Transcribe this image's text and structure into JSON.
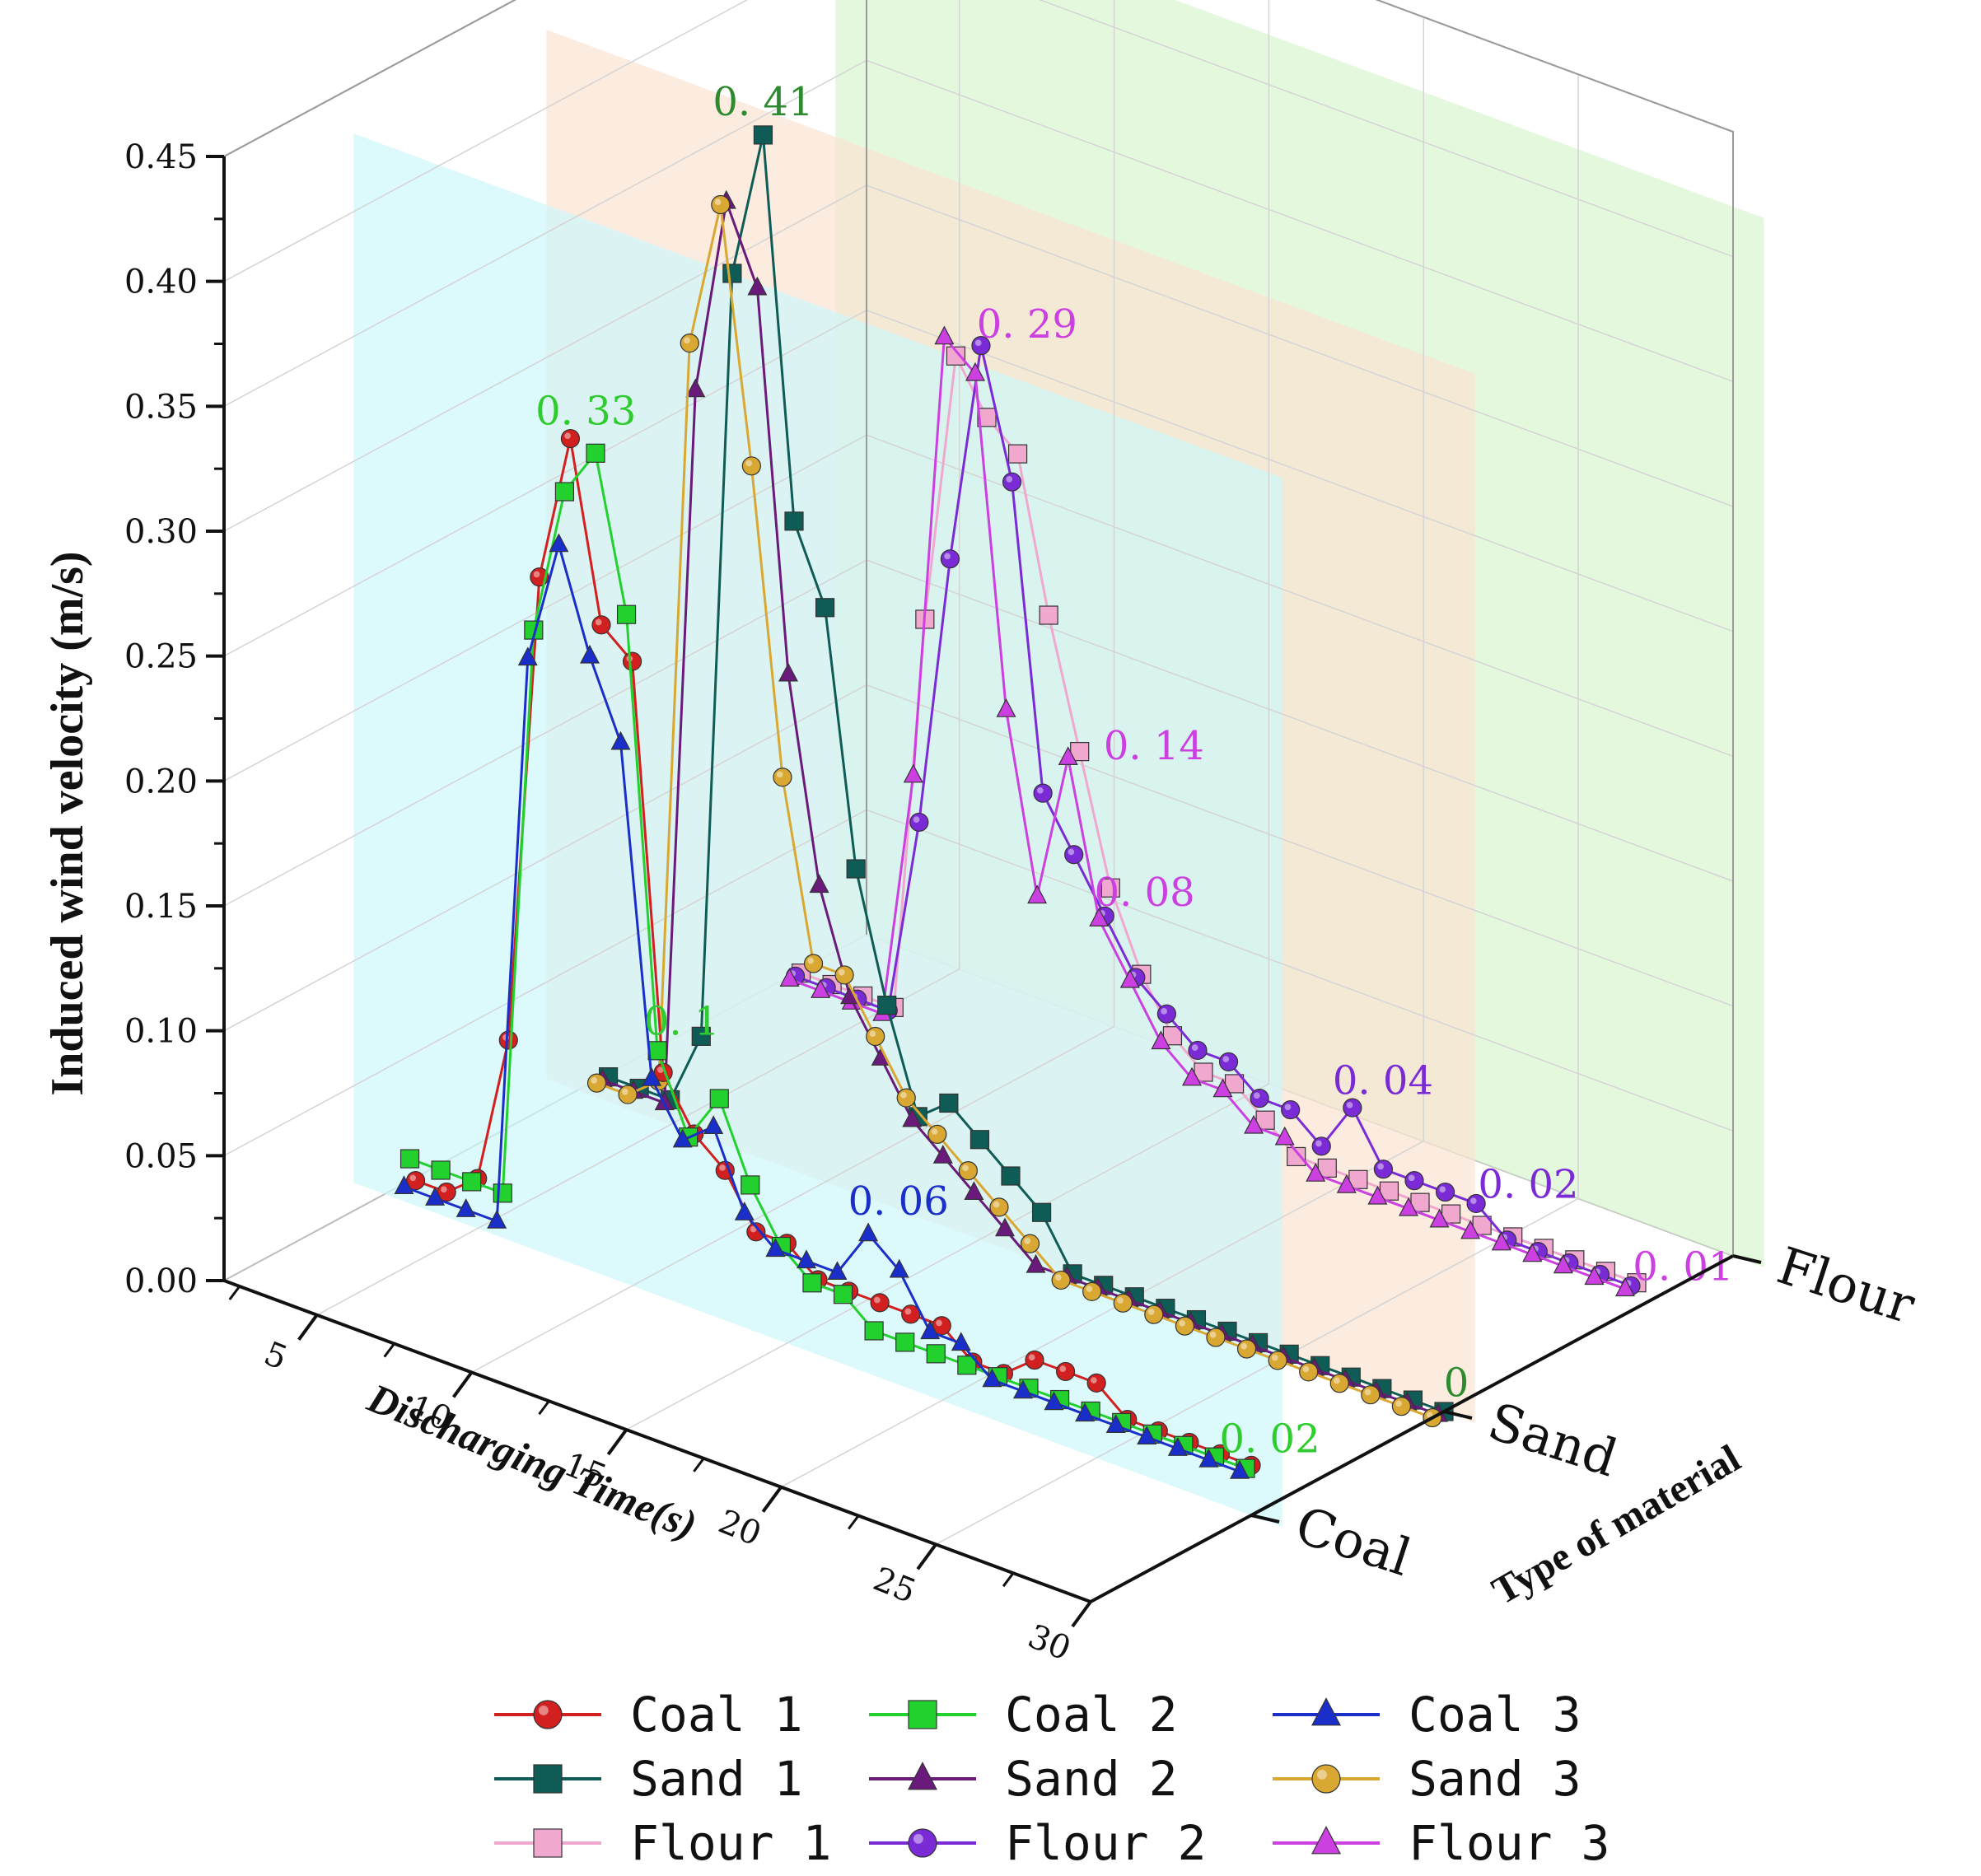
{
  "chart_data": {
    "type": "line",
    "projection": "3d",
    "ylabel": "Induced wind velocity (m/s)",
    "xlabel": "Discharging Time(s)",
    "zlabel": "Type of material",
    "ylim": [
      0,
      0.45
    ],
    "xlim": [
      2,
      30
    ],
    "y_ticks": [
      "0.00",
      "0.05",
      "0.10",
      "0.15",
      "0.20",
      "0.25",
      "0.30",
      "0.35",
      "0.40",
      "0.45"
    ],
    "x_ticks": [
      "5",
      "10",
      "15",
      "20",
      "25",
      "30"
    ],
    "categories": [
      "Coal",
      "Sand",
      "Flour"
    ],
    "colors": {
      "coal_plane": "#cdf6f9",
      "sand_plane": "#fbe3d2",
      "flour_plane": "#d8f5cf"
    },
    "series": [
      {
        "name": "Coal 1",
        "category": "Coal",
        "offset": 0,
        "color": "#d21f1f",
        "marker": "circle",
        "x": [
          3,
          4,
          5,
          6,
          7,
          8,
          9,
          10,
          11,
          12,
          13,
          14,
          15,
          16,
          17,
          18,
          19,
          20,
          21,
          22,
          23,
          24,
          25,
          26,
          27,
          28,
          29,
          30
        ],
        "values": [
          0.01,
          0.01,
          0.02,
          0.08,
          0.27,
          0.33,
          0.26,
          0.25,
          0.09,
          0.07,
          0.06,
          0.04,
          0.04,
          0.03,
          0.03,
          0.03,
          0.03,
          0.03,
          0.02,
          0.02,
          0.03,
          0.03,
          0.03,
          0.02,
          0.02,
          0.02,
          0.02,
          0.02
        ]
      },
      {
        "name": "Coal 2",
        "category": "Coal",
        "offset": 0.1,
        "color": "#22d12e",
        "marker": "square",
        "x": [
          3,
          4,
          5,
          6,
          7,
          8,
          9,
          10,
          11,
          12,
          13,
          14,
          15,
          16,
          17,
          18,
          19,
          20,
          21,
          22,
          23,
          24,
          25,
          26,
          27,
          28,
          29,
          30
        ],
        "values": [
          0.02,
          0.02,
          0.02,
          0.02,
          0.25,
          0.31,
          0.33,
          0.27,
          0.1,
          0.07,
          0.09,
          0.06,
          0.04,
          0.03,
          0.03,
          0.02,
          0.02,
          0.02,
          0.02,
          0.02,
          0.02,
          0.02,
          0.02,
          0.02,
          0.02,
          0.02,
          0.02,
          0.02
        ]
      },
      {
        "name": "Coal 3",
        "category": "Coal",
        "offset": 0.2,
        "color": "#1a2fc9",
        "marker": "triangle",
        "x": [
          3,
          4,
          5,
          6,
          7,
          8,
          9,
          10,
          11,
          12,
          13,
          14,
          15,
          16,
          17,
          18,
          19,
          20,
          21,
          22,
          23,
          24,
          25,
          26,
          27,
          28,
          29,
          30
        ],
        "values": [
          0.01,
          0.01,
          0.01,
          0.01,
          0.24,
          0.29,
          0.25,
          0.22,
          0.09,
          0.07,
          0.08,
          0.05,
          0.04,
          0.04,
          0.04,
          0.06,
          0.05,
          0.03,
          0.03,
          0.02,
          0.02,
          0.02,
          0.02,
          0.02,
          0.02,
          0.02,
          0.02,
          0.02
        ]
      },
      {
        "name": "Sand 1",
        "category": "Sand",
        "offset": 0,
        "color": "#0e5c55",
        "marker": "square",
        "x": [
          3,
          4,
          5,
          6,
          7,
          8,
          9,
          10,
          11,
          12,
          13,
          14,
          15,
          16,
          17,
          18,
          19,
          20,
          21,
          22,
          23,
          24,
          25,
          26,
          27,
          28,
          29,
          30
        ],
        "values": [
          0.01,
          0.01,
          0.01,
          0.04,
          0.35,
          0.41,
          0.26,
          0.23,
          0.13,
          0.08,
          0.04,
          0.05,
          0.04,
          0.03,
          0.02,
          0,
          0,
          0,
          0,
          0,
          0,
          0,
          0,
          0,
          0,
          0,
          0,
          0
        ]
      },
      {
        "name": "Sand 2",
        "category": "Sand",
        "offset": 0.1,
        "color": "#6a1a7a",
        "marker": "triangle",
        "x": [
          3,
          4,
          5,
          6,
          7,
          8,
          9,
          10,
          11,
          12,
          13,
          14,
          15,
          16,
          17,
          18,
          19,
          20,
          21,
          22,
          23,
          24,
          25,
          26,
          27,
          28,
          29,
          30
        ],
        "values": [
          0.01,
          0.01,
          0.01,
          0.3,
          0.38,
          0.35,
          0.2,
          0.12,
          0.08,
          0.06,
          0.04,
          0.03,
          0.02,
          0.01,
          0,
          0,
          0,
          0,
          0,
          0,
          0,
          0,
          0,
          0,
          0,
          0,
          0,
          0
        ]
      },
      {
        "name": "Sand 3",
        "category": "Sand",
        "offset": 0.2,
        "color": "#d9a833",
        "marker": "circle",
        "x": [
          3,
          4,
          5,
          6,
          7,
          8,
          9,
          10,
          11,
          12,
          13,
          14,
          15,
          16,
          17,
          18,
          19,
          20,
          21,
          22,
          23,
          24,
          25,
          26,
          27,
          28,
          29,
          30
        ],
        "values": [
          0.01,
          0.01,
          0.02,
          0.32,
          0.38,
          0.28,
          0.16,
          0.09,
          0.09,
          0.07,
          0.05,
          0.04,
          0.03,
          0.02,
          0.01,
          0,
          0,
          0,
          0,
          0,
          0,
          0,
          0,
          0,
          0,
          0,
          0,
          0
        ]
      },
      {
        "name": "Flour 1",
        "category": "Flour",
        "offset": 0,
        "color": "#f0a8cf",
        "marker": "square",
        "x": [
          3,
          4,
          5,
          6,
          7,
          8,
          9,
          10,
          11,
          12,
          13,
          14,
          15,
          16,
          17,
          18,
          19,
          20,
          21,
          22,
          23,
          24,
          25,
          26,
          27,
          28,
          29,
          30
        ],
        "values": [
          0.01,
          0.01,
          0.01,
          0.01,
          0.17,
          0.28,
          0.26,
          0.25,
          0.19,
          0.14,
          0.09,
          0.06,
          0.04,
          0.03,
          0.03,
          0.02,
          0.01,
          0.01,
          0.01,
          0.01,
          0.01,
          0.01,
          0.01,
          0.01,
          0.01,
          0.01,
          0.01,
          0.01
        ]
      },
      {
        "name": "Flour 2",
        "category": "Flour",
        "offset": 0.1,
        "color": "#7a2bd6",
        "marker": "circle",
        "x": [
          3,
          4,
          5,
          6,
          7,
          8,
          9,
          10,
          11,
          12,
          13,
          14,
          15,
          16,
          17,
          18,
          19,
          20,
          21,
          22,
          23,
          24,
          25,
          26,
          27,
          28,
          29,
          30
        ],
        "values": [
          0.01,
          0.01,
          0.01,
          0.01,
          0.09,
          0.2,
          0.29,
          0.24,
          0.12,
          0.1,
          0.08,
          0.06,
          0.05,
          0.04,
          0.04,
          0.03,
          0.03,
          0.02,
          0.04,
          0.02,
          0.02,
          0.02,
          0.02,
          0.01,
          0.01,
          0.01,
          0.01,
          0.01
        ]
      },
      {
        "name": "Flour 3",
        "category": "Flour",
        "offset": 0.2,
        "color": "#cc3fe0",
        "marker": "triangle",
        "x": [
          3,
          4,
          5,
          6,
          7,
          8,
          9,
          10,
          11,
          12,
          13,
          14,
          15,
          16,
          17,
          18,
          19,
          20,
          21,
          22,
          23,
          24,
          25,
          26,
          27,
          28,
          29,
          30
        ],
        "values": [
          0.01,
          0.01,
          0.01,
          0.01,
          0.11,
          0.29,
          0.28,
          0.15,
          0.08,
          0.14,
          0.08,
          0.06,
          0.04,
          0.03,
          0.03,
          0.02,
          0.02,
          0.01,
          0.01,
          0.01,
          0.01,
          0.01,
          0.01,
          0.01,
          0.01,
          0.01,
          0.01,
          0.01
        ]
      }
    ],
    "annotations": [
      {
        "text": "0. 33",
        "color": "#2fcc2f",
        "category": "Coal",
        "x": 8.5,
        "y": 0.33
      },
      {
        "text": "0. 1",
        "color": "#2fcc2f",
        "category": "Coal",
        "x": 11.6,
        "y": 0.1
      },
      {
        "text": "0. 06",
        "color": "#1a2fc9",
        "category": "Coal",
        "x": 18.6,
        "y": 0.06
      },
      {
        "text": "0. 02",
        "color": "#2fcc2f",
        "category": "Coal",
        "x": 30.6,
        "y": 0.02
      },
      {
        "text": "0. 41",
        "color": "#2e8a2e",
        "category": "Sand",
        "x": 8,
        "y": 0.41
      },
      {
        "text": "0",
        "color": "#2e8a2e",
        "category": "Sand",
        "x": 30.4,
        "y": 0.0
      },
      {
        "text": "0. 29",
        "color": "#cc3fe0",
        "category": "Flour",
        "x": 10.3,
        "y": 0.29
      },
      {
        "text": "0. 14",
        "color": "#cc3fe0",
        "category": "Flour",
        "x": 14.4,
        "y": 0.14
      },
      {
        "text": "0. 08",
        "color": "#cc3fe0",
        "category": "Flour",
        "x": 14.1,
        "y": 0.08
      },
      {
        "text": "0. 04",
        "color": "#7a2bd6",
        "category": "Flour",
        "x": 21.8,
        "y": 0.04
      },
      {
        "text": "0. 02",
        "color": "#7a2bd6",
        "category": "Flour",
        "x": 26.5,
        "y": 0.02
      },
      {
        "text": "0. 01",
        "color": "#cc3fe0",
        "category": "Flour",
        "x": 31.5,
        "y": 0.01
      }
    ],
    "legend_position": "bottom"
  }
}
